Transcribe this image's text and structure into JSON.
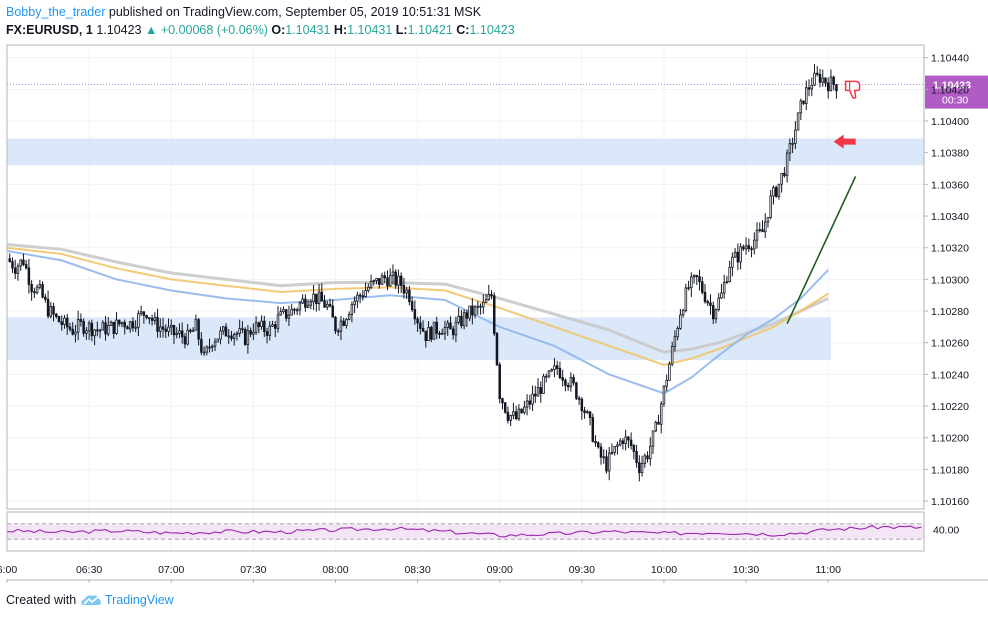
{
  "header": {
    "author": "Bobby_the_trader",
    "published": "published on TradingView.com, September 05, 2019 10:51:31 MSK",
    "symbol": "FX:EURUSD, 1",
    "last": "1.10423",
    "change": "+0.00068 (+0.06%)",
    "ohlc": [
      {
        "label": "O:",
        "value": "1.10431"
      },
      {
        "label": "H:",
        "value": "1.10431"
      },
      {
        "label": "L:",
        "value": "1.10421"
      },
      {
        "label": "C:",
        "value": "1.10423"
      }
    ]
  },
  "footer": {
    "created_with": "Created with",
    "brand": "TradingView"
  },
  "colors": {
    "up": "#26a69a",
    "candle": "#131722",
    "zone": "#cfe0f7",
    "ema_blue": "#8fb5ec",
    "ema_orange": "#f2c46a",
    "ema_gray": "#c9c9c9",
    "rsi": "#9c27b0",
    "rsi_band": "#f3e5f5",
    "price_badge": "#b15cc5",
    "trendline": "#1b5e20",
    "arrow": "#f23645",
    "thumb": "#f23645"
  },
  "icons": {
    "logo": "tradingview-cloud-icon",
    "arrow": "left-arrow-icon",
    "thumb": "thumbs-down-icon"
  },
  "chart_data": {
    "type": "candlestick",
    "timeframe": "1 minute",
    "y_ticks": [
      "1.10440",
      "1.10420",
      "1.10400",
      "1.10380",
      "1.10360",
      "1.10340",
      "1.10320",
      "1.10300",
      "1.10280",
      "1.10260",
      "1.10240",
      "1.10220",
      "1.10200",
      "1.10180",
      "1.10160"
    ],
    "x_ticks": [
      "6:00",
      "06:30",
      "07:00",
      "07:30",
      "08:00",
      "08:30",
      "09:00",
      "09:30",
      "10:00",
      "10:30",
      "11:00"
    ],
    "ylim": [
      1.10155,
      1.10448
    ],
    "xlim_minutes": [
      360,
      695
    ],
    "current_price": "1.10423",
    "countdown": "00:30",
    "rsi_label": "40.00",
    "zones": [
      {
        "from": 1.10372,
        "to": 1.10389,
        "x_end": 695
      },
      {
        "from": 1.10249,
        "to": 1.10276,
        "x_end": 661
      }
    ],
    "close_path": [
      [
        360,
        1.10313
      ],
      [
        363,
        1.10308
      ],
      [
        366,
        1.10312
      ],
      [
        369,
        1.10296
      ],
      [
        372,
        1.10292
      ],
      [
        375,
        1.10281
      ],
      [
        378,
        1.10275
      ],
      [
        381,
        1.10271
      ],
      [
        384,
        1.10268
      ],
      [
        387,
        1.10271
      ],
      [
        390,
        1.1027
      ],
      [
        393,
        1.10268
      ],
      [
        396,
        1.10269
      ],
      [
        399,
        1.1027
      ],
      [
        402,
        1.10273
      ],
      [
        405,
        1.10272
      ],
      [
        408,
        1.10276
      ],
      [
        411,
        1.1028
      ],
      [
        414,
        1.10272
      ],
      [
        417,
        1.10269
      ],
      [
        420,
        1.10266
      ],
      [
        423,
        1.10265
      ],
      [
        426,
        1.10263
      ],
      [
        429,
        1.1027
      ],
      [
        432,
        1.1025
      ],
      [
        435,
        1.10262
      ],
      [
        438,
        1.10265
      ],
      [
        441,
        1.10268
      ],
      [
        444,
        1.10266
      ],
      [
        447,
        1.10263
      ],
      [
        450,
        1.1027
      ],
      [
        453,
        1.10269
      ],
      [
        456,
        1.10268
      ],
      [
        459,
        1.10275
      ],
      [
        462,
        1.10278
      ],
      [
        465,
        1.10281
      ],
      [
        468,
        1.10286
      ],
      [
        471,
        1.1029
      ],
      [
        474,
        1.10287
      ],
      [
        477,
        1.10283
      ],
      [
        480,
        1.1027
      ],
      [
        483,
        1.10275
      ],
      [
        486,
        1.10285
      ],
      [
        489,
        1.1029
      ],
      [
        492,
        1.10295
      ],
      [
        495,
        1.10298
      ],
      [
        498,
        1.10301
      ],
      [
        501,
        1.103
      ],
      [
        504,
        1.10297
      ],
      [
        507,
        1.1029
      ],
      [
        510,
        1.10275
      ],
      [
        513,
        1.10265
      ],
      [
        516,
        1.10268
      ],
      [
        519,
        1.1027
      ],
      [
        522,
        1.10267
      ],
      [
        525,
        1.10272
      ],
      [
        528,
        1.10278
      ],
      [
        531,
        1.1028
      ],
      [
        534,
        1.10283
      ],
      [
        537,
        1.1029
      ],
      [
        540,
        1.10228
      ],
      [
        543,
        1.10215
      ],
      [
        546,
        1.10212
      ],
      [
        549,
        1.10218
      ],
      [
        552,
        1.10225
      ],
      [
        555,
        1.10232
      ],
      [
        558,
        1.10238
      ],
      [
        561,
        1.10244
      ],
      [
        564,
        1.10238
      ],
      [
        567,
        1.10232
      ],
      [
        570,
        1.10222
      ],
      [
        573,
        1.10208
      ],
      [
        576,
        1.1019
      ],
      [
        579,
        1.10183
      ],
      [
        582,
        1.10192
      ],
      [
        585,
        1.102
      ],
      [
        588,
        1.10195
      ],
      [
        591,
        1.10182
      ],
      [
        594,
        1.1019
      ],
      [
        597,
        1.10205
      ],
      [
        600,
        1.1023
      ],
      [
        603,
        1.10255
      ],
      [
        606,
        1.1028
      ],
      [
        609,
        1.10295
      ],
      [
        612,
        1.103
      ],
      [
        615,
        1.1029
      ],
      [
        618,
        1.1028
      ],
      [
        621,
        1.1029
      ],
      [
        624,
        1.1031
      ],
      [
        627,
        1.10315
      ],
      [
        630,
        1.10322
      ],
      [
        633,
        1.10325
      ],
      [
        636,
        1.1033
      ],
      [
        639,
        1.1035
      ],
      [
        642,
        1.1036
      ],
      [
        645,
        1.10375
      ],
      [
        648,
        1.10395
      ],
      [
        651,
        1.10415
      ],
      [
        654,
        1.10425
      ],
      [
        657,
        1.10428
      ],
      [
        660,
        1.10424
      ],
      [
        663,
        1.10423
      ]
    ],
    "ema": {
      "blue": [
        [
          360,
          1.10318
        ],
        [
          380,
          1.10312
        ],
        [
          400,
          1.103
        ],
        [
          420,
          1.10293
        ],
        [
          440,
          1.10288
        ],
        [
          460,
          1.10285
        ],
        [
          480,
          1.10287
        ],
        [
          500,
          1.1029
        ],
        [
          520,
          1.10287
        ],
        [
          540,
          1.1027
        ],
        [
          560,
          1.10258
        ],
        [
          580,
          1.1024
        ],
        [
          600,
          1.10228
        ],
        [
          610,
          1.10238
        ],
        [
          620,
          1.10252
        ],
        [
          630,
          1.10265
        ],
        [
          640,
          1.10275
        ],
        [
          650,
          1.10288
        ],
        [
          660,
          1.10306
        ]
      ],
      "orange": [
        [
          360,
          1.1032
        ],
        [
          380,
          1.10316
        ],
        [
          400,
          1.10307
        ],
        [
          420,
          1.103
        ],
        [
          440,
          1.10296
        ],
        [
          460,
          1.10292
        ],
        [
          480,
          1.10294
        ],
        [
          500,
          1.10295
        ],
        [
          520,
          1.10293
        ],
        [
          540,
          1.10282
        ],
        [
          560,
          1.1027
        ],
        [
          580,
          1.10258
        ],
        [
          600,
          1.10246
        ],
        [
          610,
          1.1025
        ],
        [
          620,
          1.10256
        ],
        [
          630,
          1.10263
        ],
        [
          640,
          1.1027
        ],
        [
          650,
          1.1028
        ],
        [
          660,
          1.10291
        ]
      ],
      "gray": [
        [
          360,
          1.10322
        ],
        [
          380,
          1.10319
        ],
        [
          400,
          1.10311
        ],
        [
          420,
          1.10304
        ],
        [
          440,
          1.103
        ],
        [
          460,
          1.10296
        ],
        [
          480,
          1.10298
        ],
        [
          500,
          1.10298
        ],
        [
          520,
          1.10297
        ],
        [
          540,
          1.10288
        ],
        [
          560,
          1.10278
        ],
        [
          580,
          1.10268
        ],
        [
          600,
          1.10254
        ],
        [
          610,
          1.10256
        ],
        [
          620,
          1.1026
        ],
        [
          630,
          1.10266
        ],
        [
          640,
          1.10272
        ],
        [
          650,
          1.1028
        ],
        [
          660,
          1.10288
        ]
      ]
    },
    "trendline": [
      [
        645,
        1.10272
      ],
      [
        670,
        1.10365
      ]
    ],
    "rsi": {
      "ylim": [
        0,
        100
      ],
      "upper": 70,
      "lower": 30,
      "values": [
        [
          360,
          52
        ],
        [
          380,
          48
        ],
        [
          400,
          52
        ],
        [
          420,
          46
        ],
        [
          440,
          50
        ],
        [
          460,
          49
        ],
        [
          480,
          54
        ],
        [
          500,
          58
        ],
        [
          520,
          50
        ],
        [
          540,
          40
        ],
        [
          560,
          44
        ],
        [
          580,
          50
        ],
        [
          600,
          45
        ],
        [
          620,
          48
        ],
        [
          640,
          43
        ],
        [
          650,
          47
        ],
        [
          660,
          55
        ],
        [
          680,
          62
        ],
        [
          695,
          60
        ]
      ]
    }
  }
}
